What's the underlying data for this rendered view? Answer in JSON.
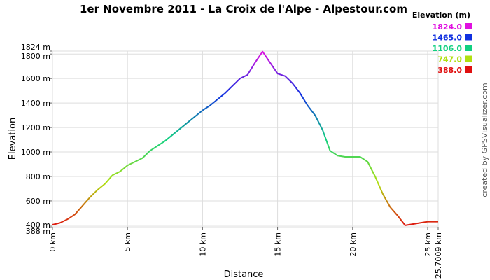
{
  "chart_data": {
    "type": "line",
    "title": "1er Novembre 2011 - La Croix de l'Alpe - Alpestour.com",
    "x_label": "Distance",
    "y_label": "Elevation",
    "credit": "created by GPSVisualizer.com",
    "legend_title": "Elevation (m)",
    "color_scale": [
      {
        "value": 1824,
        "label": "1824.0",
        "color": "#e010e0"
      },
      {
        "value": 1465,
        "label": "1465.0",
        "color": "#1030e0"
      },
      {
        "value": 1106,
        "label": "1106.0",
        "color": "#10d080"
      },
      {
        "value": 747,
        "label": "747.0",
        "color": "#b0e010"
      },
      {
        "value": 388,
        "label": "388.0",
        "color": "#e01010"
      }
    ],
    "x": [
      0,
      0.5,
      1,
      1.5,
      2,
      2.5,
      3,
      3.5,
      4,
      4.5,
      5,
      5.5,
      6,
      6.5,
      7,
      7.5,
      8,
      8.5,
      9,
      9.5,
      10,
      10.5,
      11,
      11.5,
      12,
      12.5,
      13,
      13.5,
      14,
      14.5,
      15,
      15.5,
      16,
      16.5,
      17,
      17.5,
      18,
      18.5,
      19,
      19.5,
      20,
      20.5,
      21,
      21.5,
      22,
      22.5,
      23,
      23.5,
      24,
      24.5,
      25,
      25.7009
    ],
    "values": [
      405,
      420,
      450,
      490,
      560,
      630,
      690,
      740,
      810,
      840,
      890,
      920,
      950,
      1010,
      1050,
      1090,
      1140,
      1190,
      1240,
      1290,
      1340,
      1380,
      1430,
      1480,
      1540,
      1600,
      1630,
      1730,
      1820,
      1730,
      1640,
      1620,
      1560,
      1480,
      1380,
      1300,
      1180,
      1010,
      970,
      960,
      960,
      960,
      920,
      800,
      660,
      550,
      480,
      400,
      410,
      420,
      430,
      430
    ],
    "xlim": [
      0,
      25.7009
    ],
    "xticks": [
      {
        "value": 0,
        "label": "0 km"
      },
      {
        "value": 5,
        "label": "5 km"
      },
      {
        "value": 10,
        "label": "10 km"
      },
      {
        "value": 15,
        "label": "15 km"
      },
      {
        "value": 20,
        "label": "20 km"
      },
      {
        "value": 25,
        "label": "25 km"
      },
      {
        "value": 25.7009,
        "label": "25.7009 km"
      }
    ],
    "ylim": [
      388,
      1824
    ],
    "yticks": [
      {
        "value": 388,
        "label": "388 m"
      },
      {
        "value": 400,
        "label": "400 m"
      },
      {
        "value": 600,
        "label": "600 m"
      },
      {
        "value": 800,
        "label": "800 m"
      },
      {
        "value": 1000,
        "label": "1000 m"
      },
      {
        "value": 1200,
        "label": "1200 m"
      },
      {
        "value": 1400,
        "label": "1400 m"
      },
      {
        "value": 1600,
        "label": "1600 m"
      },
      {
        "value": 1800,
        "label": "1800 m"
      },
      {
        "value": 1824,
        "label": "1824 m"
      }
    ],
    "grid": true
  }
}
